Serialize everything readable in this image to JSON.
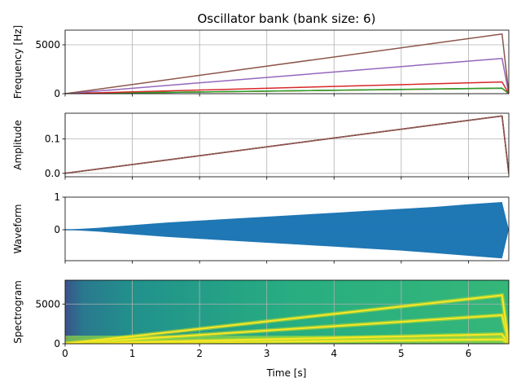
{
  "title": "Oscillator bank (bank size: 6)",
  "xlabel": "Time [s]",
  "series_colors": [
    "#1f77b4",
    "#ff7f0e",
    "#2ca02c",
    "#d62728",
    "#9467bd",
    "#8c564b"
  ],
  "chart_data": [
    {
      "type": "line",
      "ylabel": "Frequency [Hz]",
      "xlim": [
        0,
        6.6
      ],
      "ylim": [
        0,
        6500
      ],
      "xticks": [
        0,
        1,
        2,
        3,
        4,
        5,
        6
      ],
      "xtick_labels": [
        "",
        "",
        "",
        "",
        "",
        "",
        ""
      ],
      "yticks": [
        0,
        5000
      ],
      "ytick_labels": [
        "0",
        "5000"
      ],
      "grid": true,
      "series": [
        {
          "color": "#1f77b4",
          "x": [
            0,
            6.5,
            6.6
          ],
          "y": [
            0,
            550,
            0
          ]
        },
        {
          "color": "#ff7f0e",
          "x": [
            0,
            6.5,
            6.6
          ],
          "y": [
            0,
            560,
            0
          ]
        },
        {
          "color": "#2ca02c",
          "x": [
            0,
            6.5,
            6.6
          ],
          "y": [
            0,
            570,
            0
          ]
        },
        {
          "color": "#d62728",
          "x": [
            0,
            6.5,
            6.6
          ],
          "y": [
            0,
            1200,
            0
          ]
        },
        {
          "color": "#9467bd",
          "x": [
            0,
            6.5,
            6.6
          ],
          "y": [
            0,
            3600,
            0
          ]
        },
        {
          "color": "#8c564b",
          "x": [
            0,
            6.5,
            6.6
          ],
          "y": [
            0,
            6100,
            0
          ]
        }
      ]
    },
    {
      "type": "line",
      "ylabel": "Amplitude",
      "xlim": [
        0,
        6.6
      ],
      "ylim": [
        -0.01,
        0.175
      ],
      "xticks": [
        0,
        1,
        2,
        3,
        4,
        5,
        6
      ],
      "xtick_labels": [
        "",
        "",
        "",
        "",
        "",
        "",
        ""
      ],
      "yticks": [
        0.0,
        0.1
      ],
      "ytick_labels": [
        "0.0",
        "0.1"
      ],
      "grid": true,
      "series": [
        {
          "color": "#1f77b4",
          "x": [
            0,
            6.5,
            6.6
          ],
          "y": [
            0,
            0.167,
            0
          ]
        },
        {
          "color": "#ff7f0e",
          "x": [
            0,
            6.5,
            6.6
          ],
          "y": [
            0,
            0.167,
            0
          ]
        },
        {
          "color": "#2ca02c",
          "x": [
            0,
            6.5,
            6.6
          ],
          "y": [
            0,
            0.167,
            0
          ]
        },
        {
          "color": "#d62728",
          "x": [
            0,
            6.5,
            6.6
          ],
          "y": [
            0,
            0.167,
            0
          ]
        },
        {
          "color": "#9467bd",
          "x": [
            0,
            6.5,
            6.6
          ],
          "y": [
            0,
            0.167,
            0
          ]
        },
        {
          "color": "#8c564b",
          "x": [
            0,
            6.5,
            6.6
          ],
          "y": [
            0,
            0.167,
            0
          ]
        }
      ]
    },
    {
      "type": "area",
      "ylabel": "Waveform",
      "xlim": [
        0,
        6.6
      ],
      "ylim": [
        -0.95,
        1.0
      ],
      "xticks": [
        0,
        1,
        2,
        3,
        4,
        5,
        6
      ],
      "xtick_labels": [
        "",
        "",
        "",
        "",
        "",
        "",
        ""
      ],
      "yticks": [
        0,
        1
      ],
      "ytick_labels": [
        "0",
        "1"
      ],
      "grid": false,
      "color": "#1f77b4",
      "envelope": {
        "x": [
          0,
          0.5,
          1.0,
          1.5,
          2.0,
          2.5,
          3.0,
          3.5,
          4.0,
          4.5,
          5.0,
          5.5,
          6.0,
          6.5,
          6.6
        ],
        "upper": [
          0.0,
          0.06,
          0.14,
          0.22,
          0.28,
          0.34,
          0.4,
          0.46,
          0.52,
          0.58,
          0.64,
          0.7,
          0.78,
          0.85,
          0.0
        ],
        "lower": [
          0.0,
          -0.06,
          -0.14,
          -0.22,
          -0.28,
          -0.34,
          -0.4,
          -0.46,
          -0.52,
          -0.58,
          -0.64,
          -0.72,
          -0.8,
          -0.88,
          0.0
        ]
      }
    },
    {
      "type": "heatmap",
      "ylabel": "Spectrogram",
      "xlim": [
        0,
        6.6
      ],
      "ylim": [
        0,
        8000
      ],
      "xticks": [
        0,
        1,
        2,
        3,
        4,
        5,
        6
      ],
      "xtick_labels": [
        "0",
        "1",
        "2",
        "3",
        "4",
        "5",
        "6"
      ],
      "yticks": [
        0,
        5000
      ],
      "ytick_labels": [
        "0",
        "5000"
      ],
      "grid": true,
      "background_color": "#35b779",
      "tracks": [
        {
          "x": [
            0,
            6.5,
            6.6
          ],
          "y": [
            0,
            550,
            0
          ]
        },
        {
          "x": [
            0,
            6.5,
            6.6
          ],
          "y": [
            0,
            1200,
            0
          ]
        },
        {
          "x": [
            0,
            6.5,
            6.6
          ],
          "y": [
            0,
            3600,
            0
          ]
        },
        {
          "x": [
            0,
            6.5,
            6.6
          ],
          "y": [
            0,
            6100,
            0
          ]
        }
      ],
      "track_color": "#fde725"
    }
  ]
}
